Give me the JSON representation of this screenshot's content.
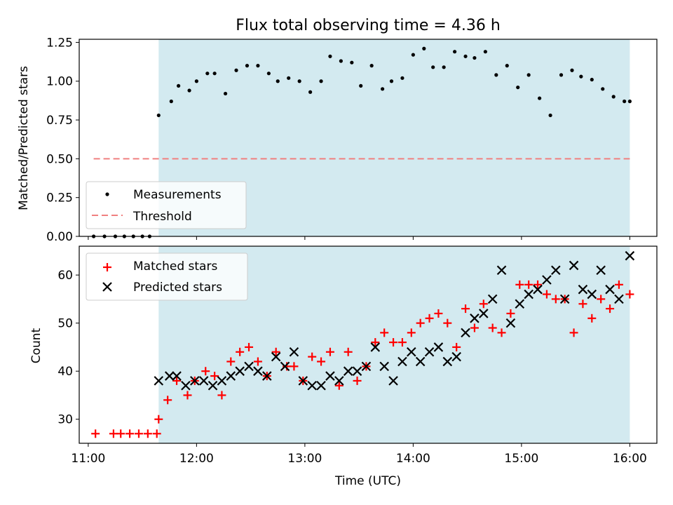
{
  "chart_data": [
    {
      "type": "scatter",
      "title": "Flux total observing time = 4.36 h",
      "xlabel": "",
      "ylabel": "Matched/Predicted stars",
      "xlim": [
        "10:55",
        "16:15"
      ],
      "ylim": [
        0,
        1.27
      ],
      "yticks": [
        "0.00",
        "0.25",
        "0.50",
        "0.75",
        "1.00",
        "1.25"
      ],
      "shaded_region": {
        "from": "11:39",
        "to": "16:00",
        "color": "#d3eaf0"
      },
      "legend": {
        "position": "lower-left",
        "entries": [
          "Measurements",
          "Threshold"
        ]
      },
      "threshold": {
        "name": "Threshold",
        "value": 0.5,
        "from": "11:03",
        "to": "16:00",
        "color": "#f08080",
        "style": "dashed"
      },
      "series": [
        {
          "name": "Measurements",
          "color": "#000000",
          "x": [
            "11:03",
            "11:09",
            "11:15",
            "11:20",
            "11:25",
            "11:30",
            "11:34",
            "11:39",
            "11:46",
            "11:50",
            "11:56",
            "12:00",
            "12:06",
            "12:10",
            "12:16",
            "12:22",
            "12:28",
            "12:34",
            "12:40",
            "12:45",
            "12:51",
            "12:57",
            "13:03",
            "13:09",
            "13:14",
            "13:20",
            "13:26",
            "13:31",
            "13:37",
            "13:43",
            "13:48",
            "13:54",
            "14:00",
            "14:06",
            "14:11",
            "14:17",
            "14:23",
            "14:29",
            "14:34",
            "14:40",
            "14:46",
            "14:52",
            "14:58",
            "15:04",
            "15:10",
            "15:16",
            "15:22",
            "15:28",
            "15:33",
            "15:39",
            "15:45",
            "15:51",
            "15:57",
            "16:00"
          ],
          "y": [
            0.0,
            0.0,
            0.0,
            0.0,
            0.0,
            0.0,
            0.0,
            0.78,
            0.87,
            0.97,
            0.94,
            1.0,
            1.05,
            1.05,
            0.92,
            1.07,
            1.1,
            1.1,
            1.05,
            1.0,
            1.02,
            1.0,
            0.93,
            1.0,
            1.16,
            1.13,
            1.12,
            0.97,
            1.1,
            0.95,
            1.0,
            1.02,
            1.17,
            1.21,
            1.09,
            1.09,
            1.19,
            1.16,
            1.15,
            1.19,
            1.04,
            1.1,
            0.96,
            1.04,
            0.89,
            0.78,
            1.04,
            1.07,
            1.03,
            1.01,
            0.95,
            0.9,
            0.87,
            0.87
          ]
        }
      ]
    },
    {
      "type": "scatter",
      "title": "",
      "xlabel": "Time (UTC)",
      "ylabel": "Count",
      "xlim": [
        "10:55",
        "16:15"
      ],
      "ylim": [
        25,
        66
      ],
      "yticks": [
        "30",
        "40",
        "50",
        "60"
      ],
      "xticks": [
        "11:00",
        "12:00",
        "13:00",
        "14:00",
        "15:00",
        "16:00"
      ],
      "shaded_region": {
        "from": "11:39",
        "to": "16:00",
        "color": "#d3eaf0"
      },
      "legend": {
        "position": "top-left",
        "entries": [
          "Matched stars",
          "Predicted stars"
        ]
      },
      "series": [
        {
          "name": "Matched stars",
          "marker": "plus",
          "color": "#ff0000",
          "x": [
            "11:04",
            "11:14",
            "11:18",
            "11:23",
            "11:28",
            "11:33",
            "11:38",
            "11:39",
            "11:44",
            "11:49",
            "11:55",
            "11:59",
            "12:05",
            "12:10",
            "12:14",
            "12:19",
            "12:24",
            "12:29",
            "12:34",
            "12:39",
            "12:44",
            "12:50",
            "12:54",
            "12:59",
            "13:04",
            "13:09",
            "13:14",
            "13:19",
            "13:24",
            "13:29",
            "13:34",
            "13:39",
            "13:44",
            "13:49",
            "13:54",
            "13:59",
            "14:04",
            "14:09",
            "14:14",
            "14:19",
            "14:24",
            "14:29",
            "14:34",
            "14:39",
            "14:44",
            "14:49",
            "14:54",
            "14:59",
            "15:04",
            "15:09",
            "15:14",
            "15:19",
            "15:24",
            "15:29",
            "15:34",
            "15:39",
            "15:44",
            "15:49",
            "15:54",
            "16:00"
          ],
          "y": [
            27,
            27,
            27,
            27,
            27,
            27,
            27,
            30,
            34,
            38,
            35,
            38,
            40,
            39,
            35,
            42,
            44,
            45,
            42,
            39,
            44,
            41,
            41,
            38,
            43,
            42,
            44,
            37,
            44,
            38,
            41,
            46,
            48,
            46,
            46,
            48,
            50,
            51,
            52,
            50,
            45,
            53,
            49,
            54,
            49,
            48,
            52,
            58,
            58,
            58,
            56,
            55,
            55,
            48,
            54,
            51,
            55,
            53,
            58,
            56
          ]
        },
        {
          "name": "Predicted stars",
          "marker": "x",
          "color": "#000000",
          "x": [
            "11:39",
            "11:45",
            "11:49",
            "11:54",
            "11:59",
            "12:04",
            "12:09",
            "12:14",
            "12:19",
            "12:24",
            "12:29",
            "12:34",
            "12:39",
            "12:44",
            "12:49",
            "12:54",
            "12:59",
            "13:04",
            "13:09",
            "13:14",
            "13:19",
            "13:24",
            "13:29",
            "13:34",
            "13:39",
            "13:44",
            "13:49",
            "13:54",
            "13:59",
            "14:04",
            "14:09",
            "14:14",
            "14:19",
            "14:24",
            "14:29",
            "14:34",
            "14:39",
            "14:44",
            "14:49",
            "14:54",
            "14:59",
            "15:04",
            "15:09",
            "15:14",
            "15:19",
            "15:24",
            "15:29",
            "15:34",
            "15:39",
            "15:44",
            "15:49",
            "15:54",
            "16:00"
          ],
          "y": [
            38,
            39,
            39,
            37,
            38,
            38,
            37,
            38,
            39,
            40,
            41,
            40,
            39,
            43,
            41,
            44,
            38,
            37,
            37,
            39,
            38,
            40,
            40,
            41,
            45,
            41,
            38,
            42,
            44,
            42,
            44,
            45,
            42,
            43,
            48,
            51,
            52,
            55,
            61,
            50,
            54,
            56,
            57,
            59,
            61,
            55,
            62,
            57,
            56,
            61,
            57,
            55,
            64
          ]
        }
      ]
    }
  ]
}
